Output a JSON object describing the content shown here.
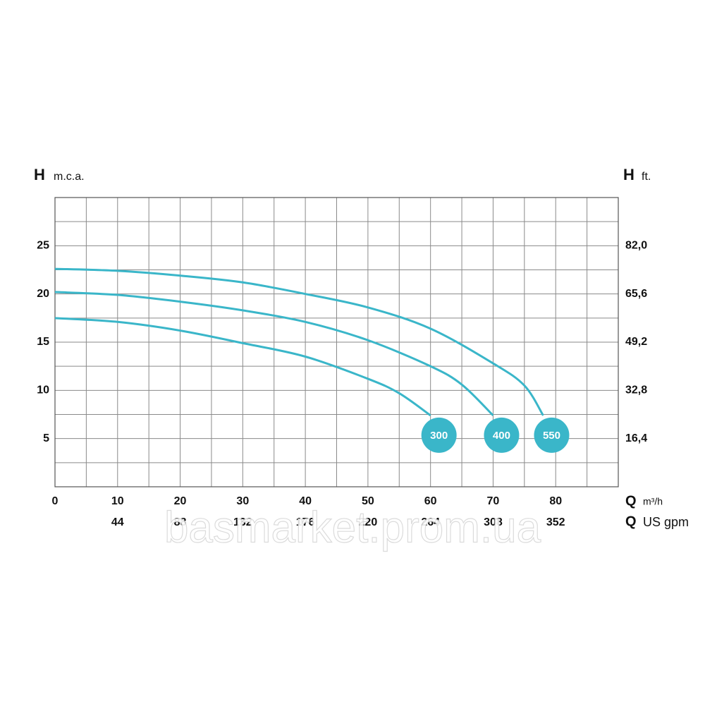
{
  "chart_data": {
    "type": "line",
    "ylabel_symbol": "H",
    "ylabel_unit": "m.c.a.",
    "y2label_symbol": "H",
    "y2label_unit": "ft.",
    "xlabel_symbol": "Q",
    "xlabel_unit": "m³/h",
    "x2label_symbol": "Q",
    "x2label_unit": "US gpm",
    "xlim": [
      0,
      90
    ],
    "xticks": [
      0,
      10,
      20,
      30,
      40,
      50,
      60,
      70,
      80
    ],
    "x2lim": [
      0,
      396
    ],
    "x2ticks": [
      44,
      88,
      132,
      176,
      220,
      264,
      308,
      352
    ],
    "ylim": [
      0,
      30
    ],
    "yticks": [
      5,
      10,
      15,
      20,
      25
    ],
    "y2lim": [
      0,
      98.4
    ],
    "y2ticks": [
      {
        "value": 16.4,
        "label": "16,4"
      },
      {
        "value": 32.8,
        "label": "32,8"
      },
      {
        "value": 49.2,
        "label": "49,2"
      },
      {
        "value": 65.6,
        "label": "65,6"
      },
      {
        "value": 82.0,
        "label": "82,0"
      }
    ],
    "xgrid": [
      5,
      10,
      15,
      20,
      25,
      30,
      35,
      40,
      45,
      50,
      55,
      60,
      65,
      70,
      75,
      80,
      85
    ],
    "ygrid": [
      2.5,
      5,
      7.5,
      10,
      12.5,
      15,
      17.5,
      20,
      22.5,
      25,
      27.5
    ],
    "series": [
      {
        "name": "300",
        "color": "#3ab6c9",
        "x": [
          0,
          10,
          20,
          30,
          40,
          50,
          55,
          60
        ],
        "values": [
          17.5,
          17.1,
          16.2,
          14.9,
          13.5,
          11.2,
          9.7,
          7.4
        ]
      },
      {
        "name": "400",
        "color": "#3ab6c9",
        "x": [
          0,
          10,
          20,
          30,
          40,
          50,
          60,
          65,
          70
        ],
        "values": [
          20.2,
          19.9,
          19.2,
          18.3,
          17.1,
          15.2,
          12.5,
          10.6,
          7.4
        ]
      },
      {
        "name": "550",
        "color": "#3ab6c9",
        "x": [
          0,
          10,
          20,
          30,
          40,
          50,
          60,
          70,
          75,
          78
        ],
        "values": [
          22.6,
          22.4,
          21.9,
          21.2,
          20.0,
          18.6,
          16.4,
          12.8,
          10.5,
          7.4
        ]
      }
    ],
    "watermark": "basmarket.prom.ua"
  }
}
